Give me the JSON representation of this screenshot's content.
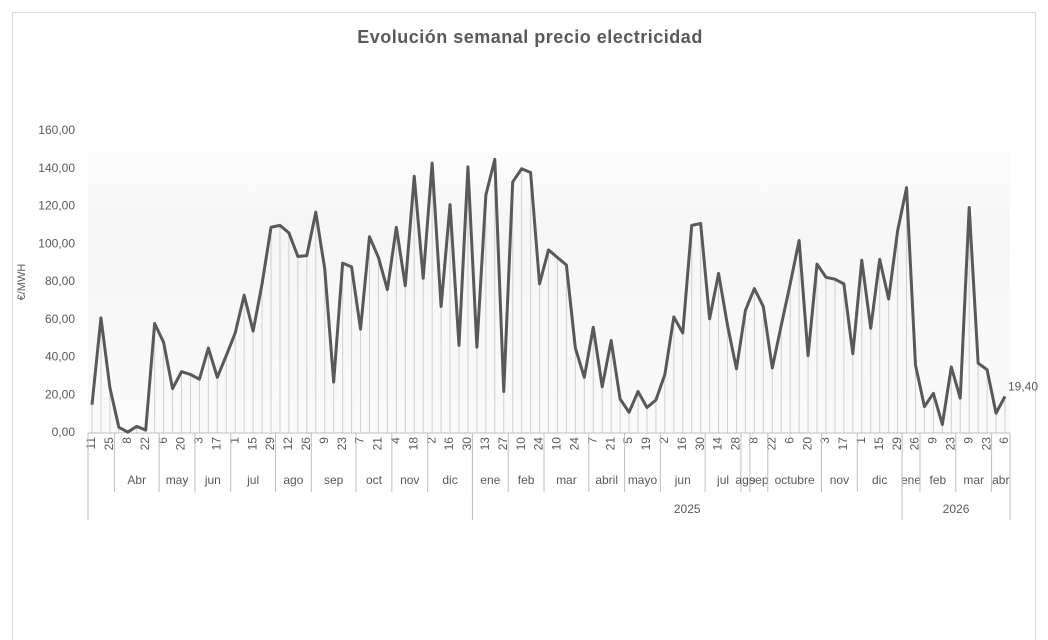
{
  "chart_data": {
    "type": "line",
    "title": "Evolución semanal precio electricidad",
    "y_label": "€/MWH",
    "color": "#595959",
    "drop_line_color": "#d0d0d0",
    "ylim": [
      0,
      160
    ],
    "yticks": [
      {
        "value": 0,
        "label": "0,00"
      },
      {
        "value": 20,
        "label": "20,00"
      },
      {
        "value": 40,
        "label": "40,00"
      },
      {
        "value": 60,
        "label": "60,00"
      },
      {
        "value": 80,
        "label": "80,00"
      },
      {
        "value": 100,
        "label": "100,00"
      },
      {
        "value": 120,
        "label": "120,00"
      },
      {
        "value": 140,
        "label": "140,00"
      },
      {
        "value": 160,
        "label": "160,00"
      }
    ],
    "categories": [
      "11",
      null,
      "25",
      null,
      "8",
      null,
      "22",
      null,
      "6",
      null,
      "20",
      null,
      "3",
      null,
      "17",
      null,
      "1",
      null,
      "15",
      null,
      "29",
      null,
      "12",
      null,
      "26",
      null,
      "9",
      null,
      "23",
      null,
      "7",
      null,
      "21",
      null,
      "4",
      null,
      "18",
      null,
      "2",
      null,
      "16",
      null,
      "30",
      null,
      "13",
      null,
      "27",
      null,
      "10",
      null,
      "24",
      null,
      "10",
      null,
      "24",
      null,
      "7",
      null,
      "21",
      null,
      "5",
      null,
      "19",
      null,
      "2",
      null,
      "16",
      null,
      "30",
      null,
      "14",
      null,
      "28",
      null,
      "8",
      null,
      "22",
      null,
      "6",
      null,
      "20",
      null,
      "3",
      null,
      "17",
      null,
      "1",
      null,
      "15",
      null,
      "29",
      null,
      "26",
      null,
      "9",
      null,
      "23",
      null,
      "9",
      null,
      "23",
      null,
      "6"
    ],
    "month_groups": [
      {
        "label": null,
        "count": 3
      },
      {
        "label": "Abr",
        "count": 5
      },
      {
        "label": "may",
        "count": 4
      },
      {
        "label": "jun",
        "count": 4
      },
      {
        "label": "jul",
        "count": 5
      },
      {
        "label": "ago",
        "count": 4
      },
      {
        "label": "sep",
        "count": 5
      },
      {
        "label": "oct",
        "count": 4
      },
      {
        "label": "nov",
        "count": 4
      },
      {
        "label": "dic",
        "count": 5
      },
      {
        "label": "ene",
        "count": 4
      },
      {
        "label": "feb",
        "count": 4
      },
      {
        "label": "mar",
        "count": 5
      },
      {
        "label": "abril",
        "count": 4
      },
      {
        "label": "mayo",
        "count": 4
      },
      {
        "label": "jun",
        "count": 5
      },
      {
        "label": "jul",
        "count": 4
      },
      {
        "label": "ago",
        "count": 1
      },
      {
        "label": "sep",
        "count": 2
      },
      {
        "label": "octubre",
        "count": 6
      },
      {
        "label": "nov",
        "count": 4
      },
      {
        "label": "dic",
        "count": 5
      },
      {
        "label": "ene",
        "count": 2
      },
      {
        "label": "feb",
        "count": 4
      },
      {
        "label": "mar",
        "count": 4
      },
      {
        "label": "abr",
        "count": 2
      }
    ],
    "year_groups": [
      {
        "label": null,
        "count": 43
      },
      {
        "label": "2025",
        "count": 48
      },
      {
        "label": "2026",
        "count": 12
      }
    ],
    "values": [
      15,
      61,
      24,
      3,
      0.5,
      3.5,
      1.5,
      58,
      48,
      23.5,
      32.5,
      31,
      28.5,
      45,
      29.5,
      41,
      53,
      73,
      54,
      79,
      109,
      110,
      106,
      93.5,
      94,
      117,
      87,
      27,
      90,
      88,
      55,
      104,
      93,
      76,
      109,
      78,
      136,
      82,
      143,
      67,
      121,
      46.5,
      141,
      45.5,
      126,
      145,
      22,
      133,
      140,
      138,
      79,
      97,
      93,
      89,
      45,
      29.5,
      56,
      24.5,
      49,
      18,
      11,
      22,
      13.5,
      17.5,
      31,
      61.5,
      53,
      110,
      111,
      60.5,
      84.5,
      57,
      34,
      65,
      76.5,
      67,
      34.5,
      57,
      79,
      102,
      41,
      89.5,
      82.5,
      81.5,
      79,
      42,
      91.5,
      55.5,
      92,
      71,
      107,
      130,
      36,
      14,
      21,
      4.5,
      35,
      18.5,
      119.5,
      37,
      33.5,
      10.5,
      19.4
    ],
    "value_labels": [
      null,
      null,
      null,
      null,
      null,
      null,
      null,
      null,
      null,
      null,
      null,
      null,
      null,
      null,
      null,
      null,
      null,
      null,
      null,
      null,
      null,
      null,
      null,
      null,
      null,
      null,
      null,
      null,
      null,
      null,
      null,
      null,
      null,
      null,
      null,
      null,
      null,
      null,
      null,
      null,
      null,
      null,
      null,
      null,
      null,
      null,
      null,
      null,
      null,
      null,
      null,
      null,
      null,
      null,
      null,
      null,
      null,
      null,
      null,
      null,
      null,
      null,
      null,
      null,
      null,
      null,
      null,
      null,
      null,
      null,
      null,
      null,
      null,
      null,
      null,
      null,
      null,
      null,
      null,
      null,
      null,
      null,
      null,
      null,
      null,
      null,
      null,
      null,
      null,
      null,
      null,
      null,
      null,
      null,
      null,
      null,
      null,
      null,
      null,
      null,
      null,
      null,
      "19,40"
    ]
  }
}
